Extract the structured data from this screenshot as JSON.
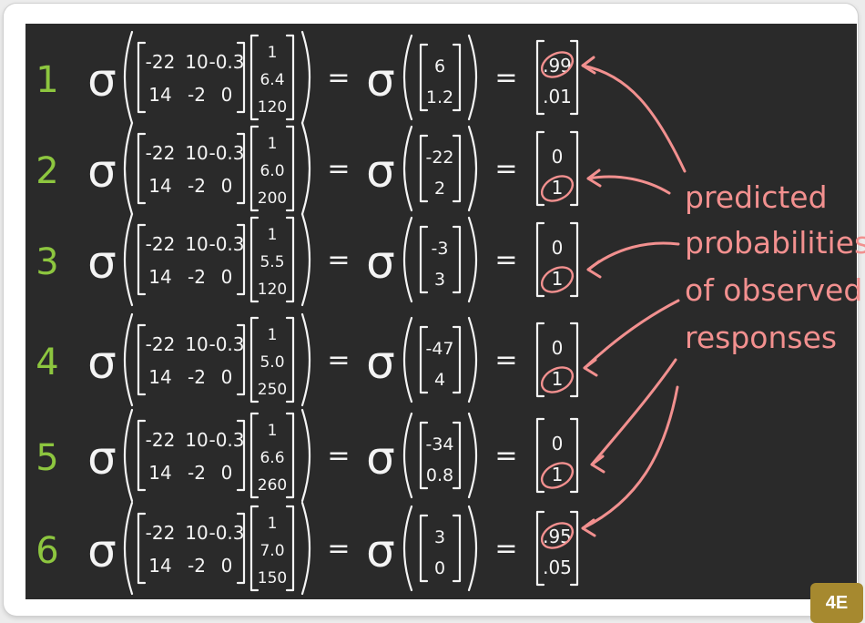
{
  "badge": "4E",
  "sigma": "σ",
  "equals": "=",
  "annotation": [
    "predicted",
    "probabilities",
    "of observed",
    "responses"
  ],
  "weights": [
    [
      "-22",
      "10",
      "-0.3"
    ],
    [
      "14",
      "-2",
      "0"
    ]
  ],
  "rows": [
    {
      "num": "1",
      "x": [
        "1",
        "6.4",
        "120"
      ],
      "z": [
        "6",
        "1.2"
      ],
      "p": [
        ".99",
        ".01"
      ],
      "circled": 0
    },
    {
      "num": "2",
      "x": [
        "1",
        "6.0",
        "200"
      ],
      "z": [
        "-22",
        "2"
      ],
      "p": [
        "0",
        "1"
      ],
      "circled": 1
    },
    {
      "num": "3",
      "x": [
        "1",
        "5.5",
        "120"
      ],
      "z": [
        "-3",
        "3"
      ],
      "p": [
        "0",
        "1"
      ],
      "circled": 1
    },
    {
      "num": "4",
      "x": [
        "1",
        "5.0",
        "250"
      ],
      "z": [
        "-47",
        "4"
      ],
      "p": [
        "0",
        "1"
      ],
      "circled": 1
    },
    {
      "num": "5",
      "x": [
        "1",
        "6.6",
        "260"
      ],
      "z": [
        "-34",
        "0.8"
      ],
      "p": [
        "0",
        "1"
      ],
      "circled": 1
    },
    {
      "num": "6",
      "x": [
        "1",
        "7.0",
        "150"
      ],
      "z": [
        "3",
        "0"
      ],
      "p": [
        ".95",
        ".05"
      ],
      "circled": 0
    }
  ],
  "colors": {
    "board": "#2a2a2a",
    "chalk": "#f4f4f4",
    "number": "#8dc63f",
    "pink": "#f2908f",
    "badge": "#a6892f"
  }
}
